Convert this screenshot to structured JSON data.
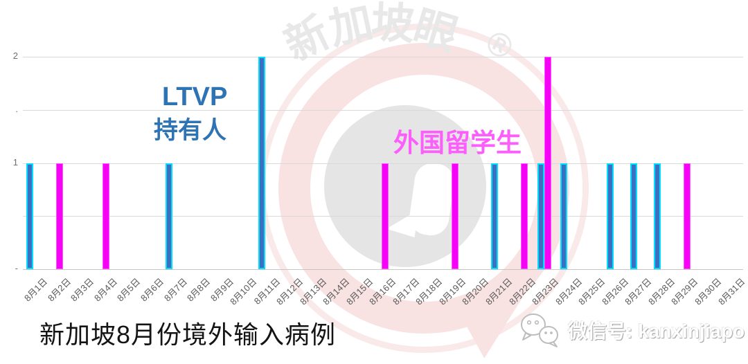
{
  "title": "新加坡8月份境外输入病例",
  "watermark": {
    "brand_chars": [
      "新",
      "加",
      "坡",
      "眼"
    ],
    "registered_mark": "®"
  },
  "annotations": {
    "ltvp_line1": "LTVP",
    "ltvp_line2": "持有人",
    "students": "外国留学生"
  },
  "footer": {
    "wechat_label": "微信号: kanxinjiapo"
  },
  "colors": {
    "ltvp_fill": "#3D6EC0",
    "ltvp_border": "#00DFFF",
    "student_fill": "#F602F6",
    "student_border": "#FF57FF",
    "label_blue": "#2E74B5",
    "label_magenta": "#FB5EFB",
    "grid": "#D9D9D9",
    "axis_line": "#C6C6C6",
    "axis_text": "#595959"
  },
  "chart_data": {
    "type": "bar",
    "title": "新加坡8月份境外输入病例",
    "xlabel": "",
    "ylabel": "",
    "ylim": [
      0,
      2
    ],
    "grid": true,
    "legend_position": "inline-text-annotations",
    "categories": [
      "8月1日",
      "8月2日",
      "8月3日",
      "8月4日",
      "8月5日",
      "8月6日",
      "8月7日",
      "8月8日",
      "8月9日",
      "8月10日",
      "8月11日",
      "8月12日",
      "8月13日",
      "8月14日",
      "8月15日",
      "8月16日",
      "8月17日",
      "8月18日",
      "8月19日",
      "8月20日",
      "8月21日",
      "8月22日",
      "8月23日",
      "8月24日",
      "8月25日",
      "8月26日",
      "8月27日",
      "8月28日",
      "8月29日",
      "8月30日",
      "8月31日"
    ],
    "series": [
      {
        "key": "ltvp",
        "name": "LTVP 持有人",
        "values": [
          1,
          0,
          0,
          0,
          0,
          0,
          1,
          0,
          0,
          0,
          2,
          0,
          0,
          0,
          0,
          0,
          0,
          0,
          0,
          0,
          1,
          0,
          1,
          1,
          0,
          1,
          1,
          1,
          0,
          0,
          0
        ]
      },
      {
        "key": "students",
        "name": "外国留学生",
        "values": [
          0,
          1,
          0,
          1,
          0,
          0,
          0,
          0,
          0,
          0,
          0,
          0,
          0,
          0,
          0,
          1,
          0,
          0,
          1,
          0,
          0,
          1,
          2,
          0,
          0,
          0,
          0,
          0,
          1,
          0,
          0
        ]
      }
    ],
    "y_ticks": [
      {
        "label": "2",
        "value": 2
      },
      {
        "label": ".",
        "value": 1.5
      },
      {
        "label": "1",
        "value": 1
      },
      {
        "label": "",
        "value": 0.5
      },
      {
        "label": "-",
        "value": 0
      }
    ]
  }
}
